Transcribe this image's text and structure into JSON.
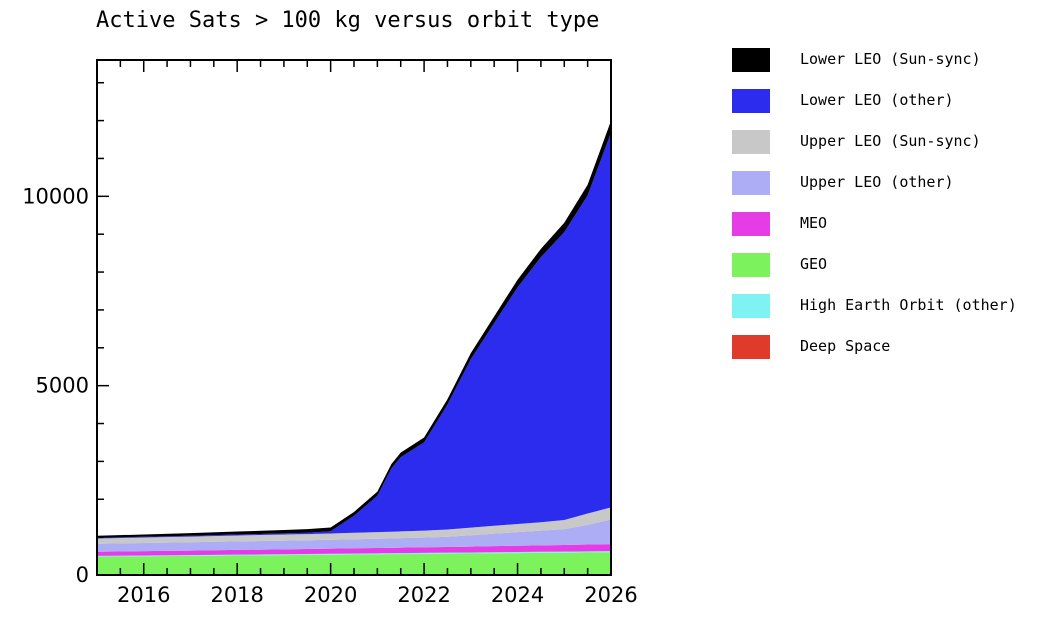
{
  "chart_data": {
    "type": "area",
    "stacked": true,
    "title": "Active Sats > 100 kg versus orbit type",
    "xlabel": "",
    "ylabel": "",
    "xlim": [
      2015.0,
      2026.0
    ],
    "ylim": [
      0,
      13600
    ],
    "x_ticks": [
      2016,
      2018,
      2020,
      2022,
      2024,
      2026
    ],
    "x_tick_labels": [
      "2016",
      "2018",
      "2020",
      "2022",
      "2024",
      "2026"
    ],
    "y_ticks": [
      0,
      5000,
      10000
    ],
    "y_tick_labels": [
      "0",
      "5000",
      "10000"
    ],
    "legend_position": "right",
    "x": [
      2015.0,
      2016.0,
      2017.0,
      2018.0,
      2019.0,
      2019.5,
      2020.0,
      2020.5,
      2021.0,
      2021.3,
      2021.5,
      2022.0,
      2022.5,
      2023.0,
      2023.5,
      2024.0,
      2024.5,
      2025.0,
      2025.5,
      2026.0
    ],
    "series": [
      {
        "name": "Deep Space",
        "color": "#e03a2a",
        "values": [
          5,
          5,
          5,
          6,
          6,
          6,
          6,
          7,
          7,
          7,
          7,
          8,
          8,
          8,
          8,
          9,
          9,
          9,
          9,
          10
        ]
      },
      {
        "name": "GEO",
        "color": "#7cf25c",
        "values": [
          480,
          490,
          500,
          510,
          520,
          525,
          530,
          535,
          540,
          543,
          545,
          550,
          555,
          560,
          565,
          570,
          575,
          580,
          585,
          590
        ]
      },
      {
        "name": "High Earth Orbit (other)",
        "color": "#7ff2f2",
        "values": [
          20,
          20,
          20,
          22,
          22,
          23,
          24,
          25,
          25,
          25,
          26,
          26,
          27,
          27,
          28,
          28,
          29,
          29,
          30,
          30
        ]
      },
      {
        "name": "MEO",
        "color": "#e63ce6",
        "values": [
          110,
          115,
          120,
          125,
          130,
          132,
          135,
          138,
          140,
          142,
          145,
          148,
          150,
          155,
          160,
          165,
          170,
          175,
          180,
          185
        ]
      },
      {
        "name": "Upper LEO (other)",
        "color": "#adadf5",
        "values": [
          210,
          215,
          220,
          225,
          230,
          232,
          235,
          240,
          245,
          248,
          250,
          255,
          270,
          300,
          330,
          360,
          390,
          420,
          520,
          650
        ]
      },
      {
        "name": "Upper LEO (Sun-sync)",
        "color": "#c8c8c8",
        "values": [
          140,
          145,
          150,
          155,
          160,
          162,
          165,
          170,
          175,
          178,
          180,
          185,
          190,
          200,
          210,
          215,
          220,
          240,
          300,
          320
        ]
      },
      {
        "name": "Lower LEO (other)",
        "color": "#2c2cee",
        "values": [
          20,
          20,
          22,
          25,
          30,
          35,
          60,
          450,
          960,
          1670,
          1960,
          2330,
          3300,
          4450,
          5350,
          6250,
          7000,
          7600,
          8400,
          9900
        ]
      },
      {
        "name": "Lower LEO (Sun-sync)",
        "color": "#000000",
        "values": [
          50,
          60,
          70,
          80,
          90,
          95,
          100,
          100,
          110,
          115,
          120,
          130,
          140,
          160,
          180,
          200,
          220,
          250,
          280,
          310
        ]
      }
    ],
    "legend_order": [
      "Lower LEO (Sun-sync)",
      "Lower LEO (other)",
      "Upper LEO (Sun-sync)",
      "Upper LEO (other)",
      "MEO",
      "GEO",
      "High Earth Orbit (other)",
      "Deep Space"
    ]
  }
}
